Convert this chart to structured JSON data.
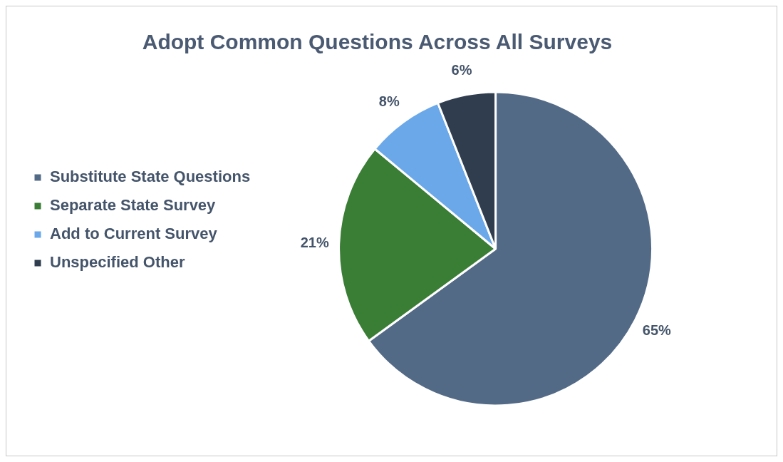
{
  "chart_data": {
    "type": "pie",
    "title": "Adopt Common Questions Across All Surveys",
    "categories": [
      "Substitute State Questions",
      "Separate State Survey",
      "Add to Current Survey",
      "Unspecified Other"
    ],
    "values": [
      65,
      21,
      8,
      6
    ],
    "colors": [
      "#536a87",
      "#3a7d35",
      "#6aa8ea",
      "#2f3d4f"
    ],
    "value_labels": [
      "65%",
      "21%",
      "8%",
      "6%"
    ],
    "legend": "left"
  }
}
